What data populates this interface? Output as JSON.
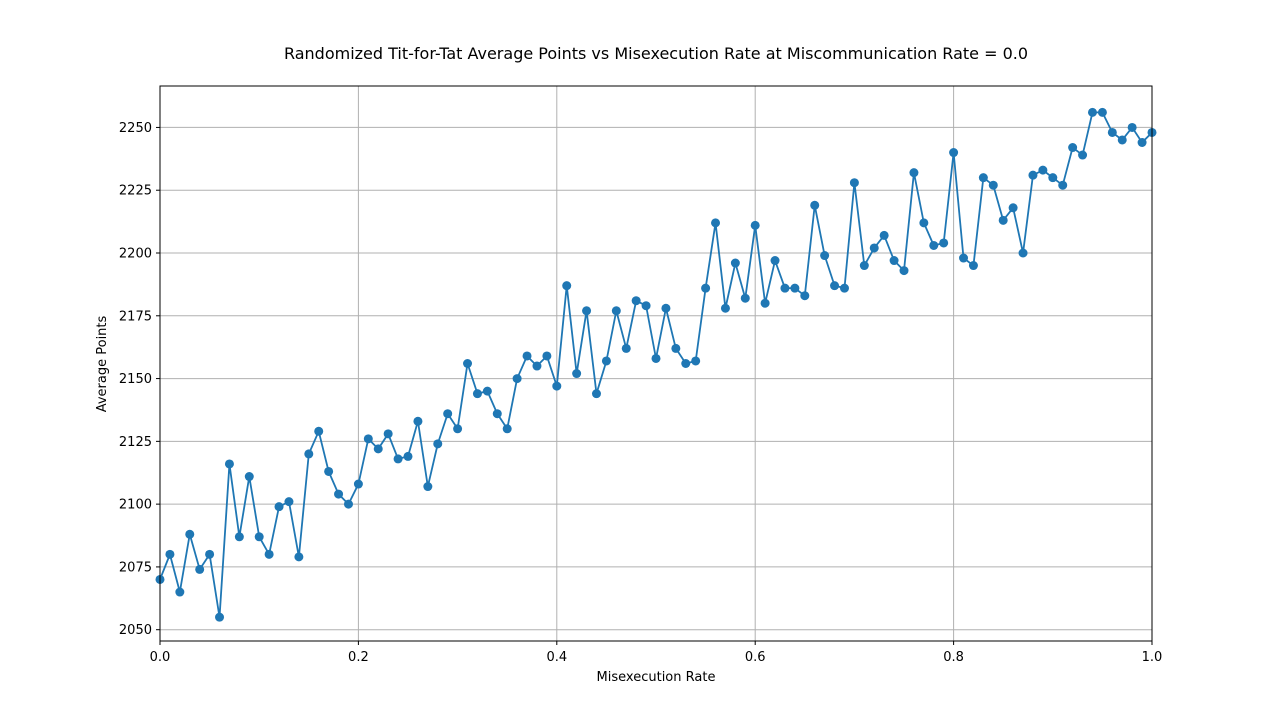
{
  "chart_data": {
    "type": "line",
    "title": "Randomized Tit-for-Tat Average Points vs Misexecution Rate at Miscommunication Rate = 0.0",
    "xlabel": "Misexecution Rate",
    "ylabel": "Average Points",
    "xlim": [
      0.0,
      1.0
    ],
    "ylim": [
      2045.5,
      2266.5
    ],
    "xticks": [
      0.0,
      0.2,
      0.4,
      0.6,
      0.8,
      1.0
    ],
    "xtick_labels": [
      "0.0",
      "0.2",
      "0.4",
      "0.6",
      "0.8",
      "1.0"
    ],
    "yticks": [
      2050,
      2075,
      2100,
      2125,
      2150,
      2175,
      2200,
      2225,
      2250
    ],
    "ytick_labels": [
      "2050",
      "2075",
      "2100",
      "2125",
      "2150",
      "2175",
      "2200",
      "2225",
      "2250"
    ],
    "grid": true,
    "color": "#1f77b4",
    "marker": "circle",
    "series": [
      {
        "x": [
          0.0,
          0.01,
          0.02,
          0.03,
          0.04,
          0.05,
          0.06,
          0.07,
          0.08,
          0.09,
          0.1,
          0.11,
          0.12,
          0.13,
          0.14,
          0.15,
          0.16,
          0.17,
          0.18,
          0.19,
          0.2,
          0.21,
          0.22,
          0.23,
          0.24,
          0.25,
          0.26,
          0.27,
          0.28,
          0.29,
          0.3,
          0.31,
          0.32,
          0.33,
          0.34,
          0.35,
          0.36,
          0.37,
          0.38,
          0.39,
          0.4,
          0.41,
          0.42,
          0.43,
          0.44,
          0.45,
          0.46,
          0.47,
          0.48,
          0.49,
          0.5,
          0.51,
          0.52,
          0.53,
          0.54,
          0.55,
          0.56,
          0.57,
          0.58,
          0.59,
          0.6,
          0.61,
          0.62,
          0.63,
          0.64,
          0.65,
          0.66,
          0.67,
          0.68,
          0.69,
          0.7,
          0.71,
          0.72,
          0.73,
          0.74,
          0.75,
          0.76,
          0.77,
          0.78,
          0.79,
          0.8,
          0.81,
          0.82,
          0.83,
          0.84,
          0.85,
          0.86,
          0.87,
          0.88,
          0.89,
          0.9,
          0.91,
          0.92,
          0.93,
          0.94,
          0.95,
          0.96,
          0.97,
          0.98,
          0.99,
          1.0
        ],
        "values": [
          2070,
          2080,
          2065,
          2088,
          2074,
          2080,
          2055,
          2116,
          2087,
          2111,
          2087,
          2080,
          2099,
          2101,
          2079,
          2120,
          2129,
          2113,
          2104,
          2100,
          2108,
          2126,
          2122,
          2128,
          2118,
          2119,
          2133,
          2107,
          2124,
          2136,
          2130,
          2156,
          2144,
          2145,
          2136,
          2130,
          2150,
          2159,
          2155,
          2159,
          2147,
          2187,
          2152,
          2177,
          2144,
          2157,
          2177,
          2162,
          2181,
          2179,
          2158,
          2178,
          2162,
          2156,
          2157,
          2186,
          2212,
          2178,
          2196,
          2182,
          2211,
          2180,
          2197,
          2186,
          2186,
          2183,
          2219,
          2199,
          2187,
          2186,
          2228,
          2195,
          2202,
          2207,
          2197,
          2193,
          2232,
          2212,
          2203,
          2204,
          2240,
          2198,
          2195,
          2230,
          2227,
          2213,
          2218,
          2200,
          2231,
          2233,
          2230,
          2227,
          2242,
          2239,
          2256,
          2256,
          2248,
          2245,
          2250,
          2244,
          2248
        ]
      }
    ]
  }
}
